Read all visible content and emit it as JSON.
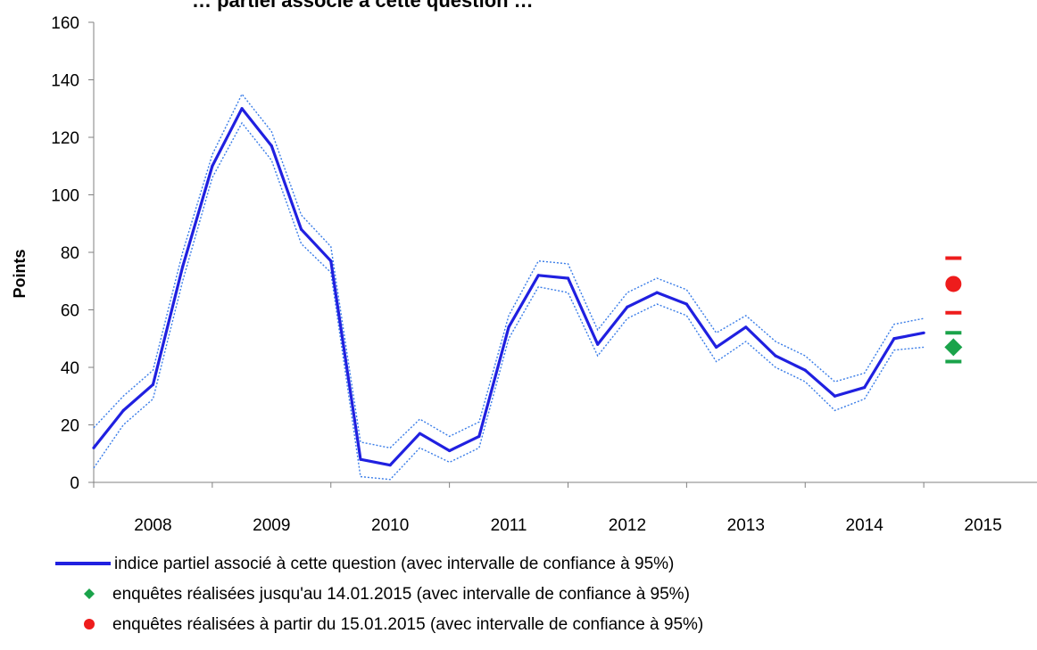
{
  "chart_data": {
    "type": "line",
    "title": "… partiel associé à cette question …",
    "ylabel": "Points",
    "xlabel": "",
    "ylim": [
      0,
      160
    ],
    "yticks": [
      "0",
      "20",
      "40",
      "60",
      "80",
      "100",
      "120",
      "140",
      "160"
    ],
    "categories": [
      "2008",
      "2009",
      "2010",
      "2011",
      "2012",
      "2013",
      "2014",
      "2015"
    ],
    "series": [
      {
        "name": "indice partiel associé à cette question (avec intervalle de confiance à 95%)",
        "color": "#2020e0",
        "x": [
          2008.0,
          2008.25,
          2008.5,
          2008.75,
          2009.0,
          2009.25,
          2009.5,
          2009.75,
          2010.0,
          2010.25,
          2010.5,
          2010.75,
          2011.0,
          2011.25,
          2011.5,
          2011.75,
          2012.0,
          2012.25,
          2012.5,
          2012.75,
          2013.0,
          2013.25,
          2013.5,
          2013.75,
          2014.0,
          2014.25,
          2014.5,
          2014.75,
          2015.0
        ],
        "values": [
          12,
          25,
          34,
          75,
          110,
          130,
          117,
          88,
          77,
          8,
          6,
          17,
          11,
          16,
          54,
          72,
          71,
          48,
          61,
          66,
          62,
          47,
          54,
          44,
          39,
          30,
          33,
          50,
          52
        ],
        "lower": [
          5,
          20,
          29,
          70,
          106,
          125,
          112,
          83,
          73,
          2,
          1,
          12,
          7,
          12,
          50,
          68,
          66,
          44,
          57,
          62,
          58,
          42,
          49,
          40,
          35,
          25,
          29,
          46,
          47
        ],
        "upper": [
          19,
          30,
          39,
          80,
          114,
          135,
          122,
          93,
          82,
          14,
          12,
          22,
          16,
          21,
          58,
          77,
          76,
          53,
          66,
          71,
          67,
          52,
          58,
          49,
          44,
          35,
          38,
          55,
          57
        ]
      },
      {
        "name": "enquêtes réalisées jusqu'au 14.01.2015 (avec intervalle de confiance à 95%)",
        "color": "#1aa34a",
        "marker": "diamond",
        "x": [
          2015.25
        ],
        "values": [
          47
        ],
        "lower": [
          42
        ],
        "upper": [
          52
        ]
      },
      {
        "name": "enquêtes réalisées à partir du 15.01.2015 (avec intervalle de confiance à 95%)",
        "color": "#ee1c1c",
        "marker": "circle",
        "x": [
          2015.25
        ],
        "values": [
          69
        ],
        "lower": [
          59
        ],
        "upper": [
          78
        ]
      }
    ],
    "grid": false,
    "legend_position": "bottom"
  }
}
